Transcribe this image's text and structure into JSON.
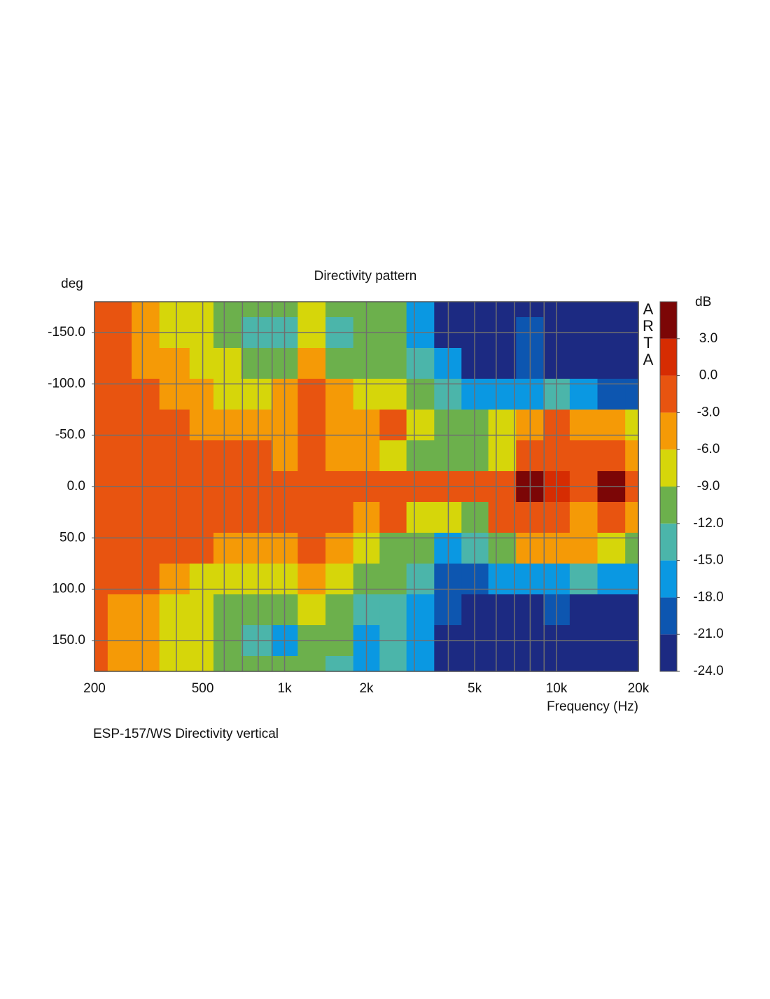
{
  "chart_data": {
    "type": "contour",
    "title": "Directivity pattern",
    "y_label": "deg",
    "x_label": "Frequency (Hz)",
    "caption": "ESP-157/WS  Directivity vertical",
    "watermark": [
      "A",
      "R",
      "T",
      "A"
    ],
    "log_x": true,
    "grid": true,
    "xlim": [
      200,
      20000
    ],
    "xticks": [
      200,
      500,
      {
        "value": 1000,
        "label": "1k"
      },
      {
        "value": 2000,
        "label": "2k"
      },
      {
        "value": 5000,
        "label": "5k"
      },
      {
        "value": 10000,
        "label": "10k"
      },
      {
        "value": 20000,
        "label": "20k"
      }
    ],
    "x_minor_grid": [
      300,
      400,
      600,
      700,
      800,
      900,
      3000,
      4000,
      6000,
      7000,
      8000,
      9000
    ],
    "ylim": [
      -180,
      180
    ],
    "yticks": [
      {
        "value": -150,
        "label": "-150.0"
      },
      {
        "value": -100,
        "label": "-100.0"
      },
      {
        "value": -50,
        "label": "-50.0"
      },
      {
        "value": 0,
        "label": "0.0"
      },
      {
        "value": 50,
        "label": "50.0"
      },
      {
        "value": 100,
        "label": "100.0"
      },
      {
        "value": 150,
        "label": "150.0"
      }
    ],
    "x": [
      200,
      250,
      300,
      400,
      500,
      600,
      800,
      1000,
      1250,
      1600,
      2000,
      2500,
      3150,
      4000,
      5000,
      6300,
      8000,
      10000,
      12500,
      16000,
      20000
    ],
    "y": [
      -180,
      -150,
      -120,
      -90,
      -60,
      -30,
      0,
      30,
      60,
      90,
      120,
      150,
      180
    ],
    "z": [
      [
        -2,
        -2,
        -5,
        -8,
        -8,
        -11,
        -11,
        -10,
        -8,
        -12,
        -12,
        -12,
        -17,
        -22,
        -22,
        -22,
        -22,
        -22,
        -22,
        -22,
        -22
      ],
      [
        -2,
        -2,
        -4,
        -7,
        -9,
        -11,
        -14,
        -15,
        -9,
        -13,
        -12,
        -12,
        -16,
        -22,
        -22,
        -22,
        -19,
        -22,
        -22,
        -22,
        -22
      ],
      [
        -2,
        -2,
        -4,
        -6,
        -7,
        -9,
        -11,
        -11,
        -6,
        -10,
        -11,
        -11,
        -14,
        -18,
        -22,
        -22,
        -20,
        -22,
        -22,
        -22,
        -22
      ],
      [
        -2,
        -2,
        -2,
        -4,
        -6,
        -7,
        -7,
        -6,
        -2,
        -6,
        -9,
        -9,
        -11,
        -14,
        -16,
        -18,
        -16,
        -15,
        -17,
        -19,
        -20
      ],
      [
        -2,
        -2,
        -2,
        -2,
        -4,
        -4,
        -4,
        -5,
        -1,
        -5,
        -5,
        -3,
        -9,
        -10,
        -12,
        -8,
        -4,
        -2,
        -4,
        -6,
        -9
      ],
      [
        -2,
        -2,
        -2,
        -2,
        -2,
        -2,
        -2,
        -4,
        -1,
        -4,
        -6,
        -8,
        -10,
        -11,
        -12,
        -7,
        -3,
        -1,
        -3,
        -2,
        -5
      ],
      [
        -2,
        -2,
        -2,
        -2,
        -2,
        -2,
        -2,
        -1,
        -1,
        -2,
        -2,
        -2,
        -2,
        -3,
        -2,
        -1,
        4,
        1,
        -1,
        4,
        -1
      ],
      [
        -3,
        -2,
        -2,
        -2,
        -2,
        -2,
        -2,
        -2,
        -1,
        -3,
        -4,
        -1,
        -7,
        -9,
        -11,
        -3,
        -1,
        -3,
        -4,
        -2,
        -5
      ],
      [
        -2,
        -2,
        -2,
        -2,
        -3,
        -4,
        -4,
        -5,
        -2,
        -6,
        -9,
        -11,
        -12,
        -16,
        -14,
        -10,
        -6,
        -4,
        -6,
        -7,
        -10
      ],
      [
        -2,
        -2,
        -3,
        -5,
        -7,
        -8,
        -8,
        -7,
        -4,
        -8,
        -11,
        -12,
        -14,
        -19,
        -20,
        -18,
        -16,
        -17,
        -15,
        -17,
        -18
      ],
      [
        -3,
        -4,
        -5,
        -7,
        -9,
        -11,
        -11,
        -12,
        -8,
        -11,
        -13,
        -15,
        -17,
        -20,
        -22,
        -22,
        -22,
        -20,
        -22,
        -22,
        -22
      ],
      [
        -2,
        -4,
        -5,
        -7,
        -9,
        -11,
        -14,
        -17,
        -10,
        -12,
        -16,
        -14,
        -18,
        -22,
        -22,
        -22,
        -22,
        -22,
        -22,
        -22,
        -22
      ],
      [
        -2,
        -4,
        -5,
        -7,
        -9,
        -11,
        -12,
        -12,
        -10,
        -14,
        -17,
        -14,
        -16,
        -22,
        -22,
        -22,
        -22,
        -22,
        -22,
        -22,
        -22
      ]
    ],
    "colorbar": {
      "label": "dB",
      "levels": [
        -24,
        -21,
        -18,
        -15,
        -12,
        -9,
        -6,
        -3,
        0,
        3,
        6
      ],
      "colors": [
        "#1c2a82",
        "#0d56b0",
        "#0a98e2",
        "#4bb5aa",
        "#6cb04c",
        "#d6d60a",
        "#f59a06",
        "#e85410",
        "#d62c02",
        "#7c0606"
      ],
      "ticks": [
        {
          "value": 3,
          "label": "3.0"
        },
        {
          "value": 0,
          "label": "0.0"
        },
        {
          "value": -3,
          "label": "-3.0"
        },
        {
          "value": -6,
          "label": "-6.0"
        },
        {
          "value": -9,
          "label": "-9.0"
        },
        {
          "value": -12,
          "label": "-12.0"
        },
        {
          "value": -15,
          "label": "-15.0"
        },
        {
          "value": -18,
          "label": "-18.0"
        },
        {
          "value": -21,
          "label": "-21.0"
        },
        {
          "value": -24,
          "label": "-24.0"
        }
      ]
    }
  }
}
